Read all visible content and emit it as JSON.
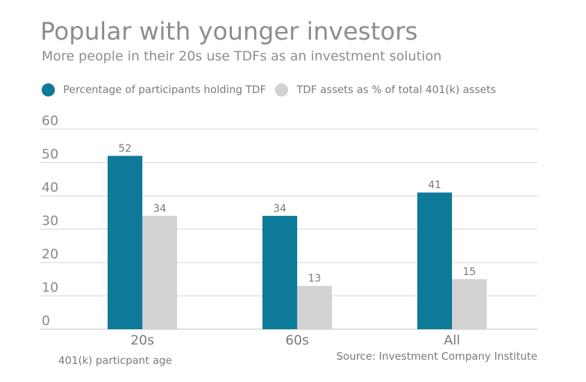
{
  "title": "Popular with younger investors",
  "subtitle": "More people in their 20s use TDFs as an investment solution",
  "legend": [
    {
      "label": "Percentage of participants holding TDF",
      "color": "#0e7a99"
    },
    {
      "label": "TDF assets as % of total 401(k) assets",
      "color": "#d3d2d3"
    }
  ],
  "xlabel": "401(k) particpant age",
  "source": "Source: Investment Company Institute",
  "chart_data": {
    "type": "bar",
    "categories": [
      "20s",
      "60s",
      "All"
    ],
    "series": [
      {
        "name": "Percentage of participants holding TDF",
        "values": [
          52,
          34,
          41
        ],
        "color": "#0e7a99"
      },
      {
        "name": "TDF assets as % of total 401(k) assets",
        "values": [
          34,
          13,
          15
        ],
        "color": "#d3d2d3"
      }
    ],
    "yticks": [
      0,
      10,
      20,
      30,
      40,
      50,
      60
    ],
    "ylim": [
      0,
      60
    ],
    "grid": true,
    "legend_position": "top-left",
    "data_labels": true
  }
}
